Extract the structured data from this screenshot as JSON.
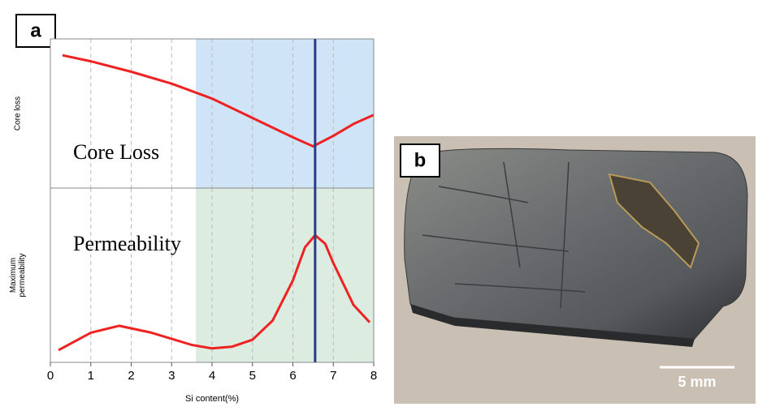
{
  "chart_data": {
    "type": "line",
    "panel_label": "a",
    "xlabel": "Si content(%)",
    "xlim": [
      0,
      8
    ],
    "xticks": [
      0,
      1,
      2,
      3,
      4,
      5,
      6,
      7,
      8
    ],
    "grid": true,
    "shaded_x": [
      3.6,
      8
    ],
    "marker_x": 6.55,
    "marker_color": "#2b3a8a",
    "panels": [
      {
        "ylabel": [
          "Core loss"
        ],
        "annotation": "Core Loss",
        "ylim": [
          0,
          1
        ],
        "shade_color": "#cfe5f7",
        "color": "#ee2222",
        "x": [
          0.3,
          1,
          2,
          3,
          4,
          5,
          6,
          6.5,
          7,
          7.5,
          8
        ],
        "values": [
          0.89,
          0.85,
          0.78,
          0.7,
          0.6,
          0.47,
          0.34,
          0.28,
          0.35,
          0.43,
          0.49
        ]
      },
      {
        "ylabel": [
          "Maximum",
          "permeability"
        ],
        "annotation": "Permeability",
        "ylim": [
          0,
          1
        ],
        "shade_color": "#dcece0",
        "color": "#ee2222",
        "x": [
          0.2,
          1,
          1.7,
          2.5,
          3.5,
          4,
          4.5,
          5,
          5.5,
          6,
          6.3,
          6.55,
          6.8,
          7,
          7.5,
          7.9
        ],
        "values": [
          0.07,
          0.17,
          0.21,
          0.17,
          0.1,
          0.08,
          0.09,
          0.13,
          0.24,
          0.47,
          0.66,
          0.73,
          0.68,
          0.57,
          0.33,
          0.23
        ]
      }
    ]
  },
  "photo": {
    "label": "b",
    "scale_bar": "5 mm"
  }
}
